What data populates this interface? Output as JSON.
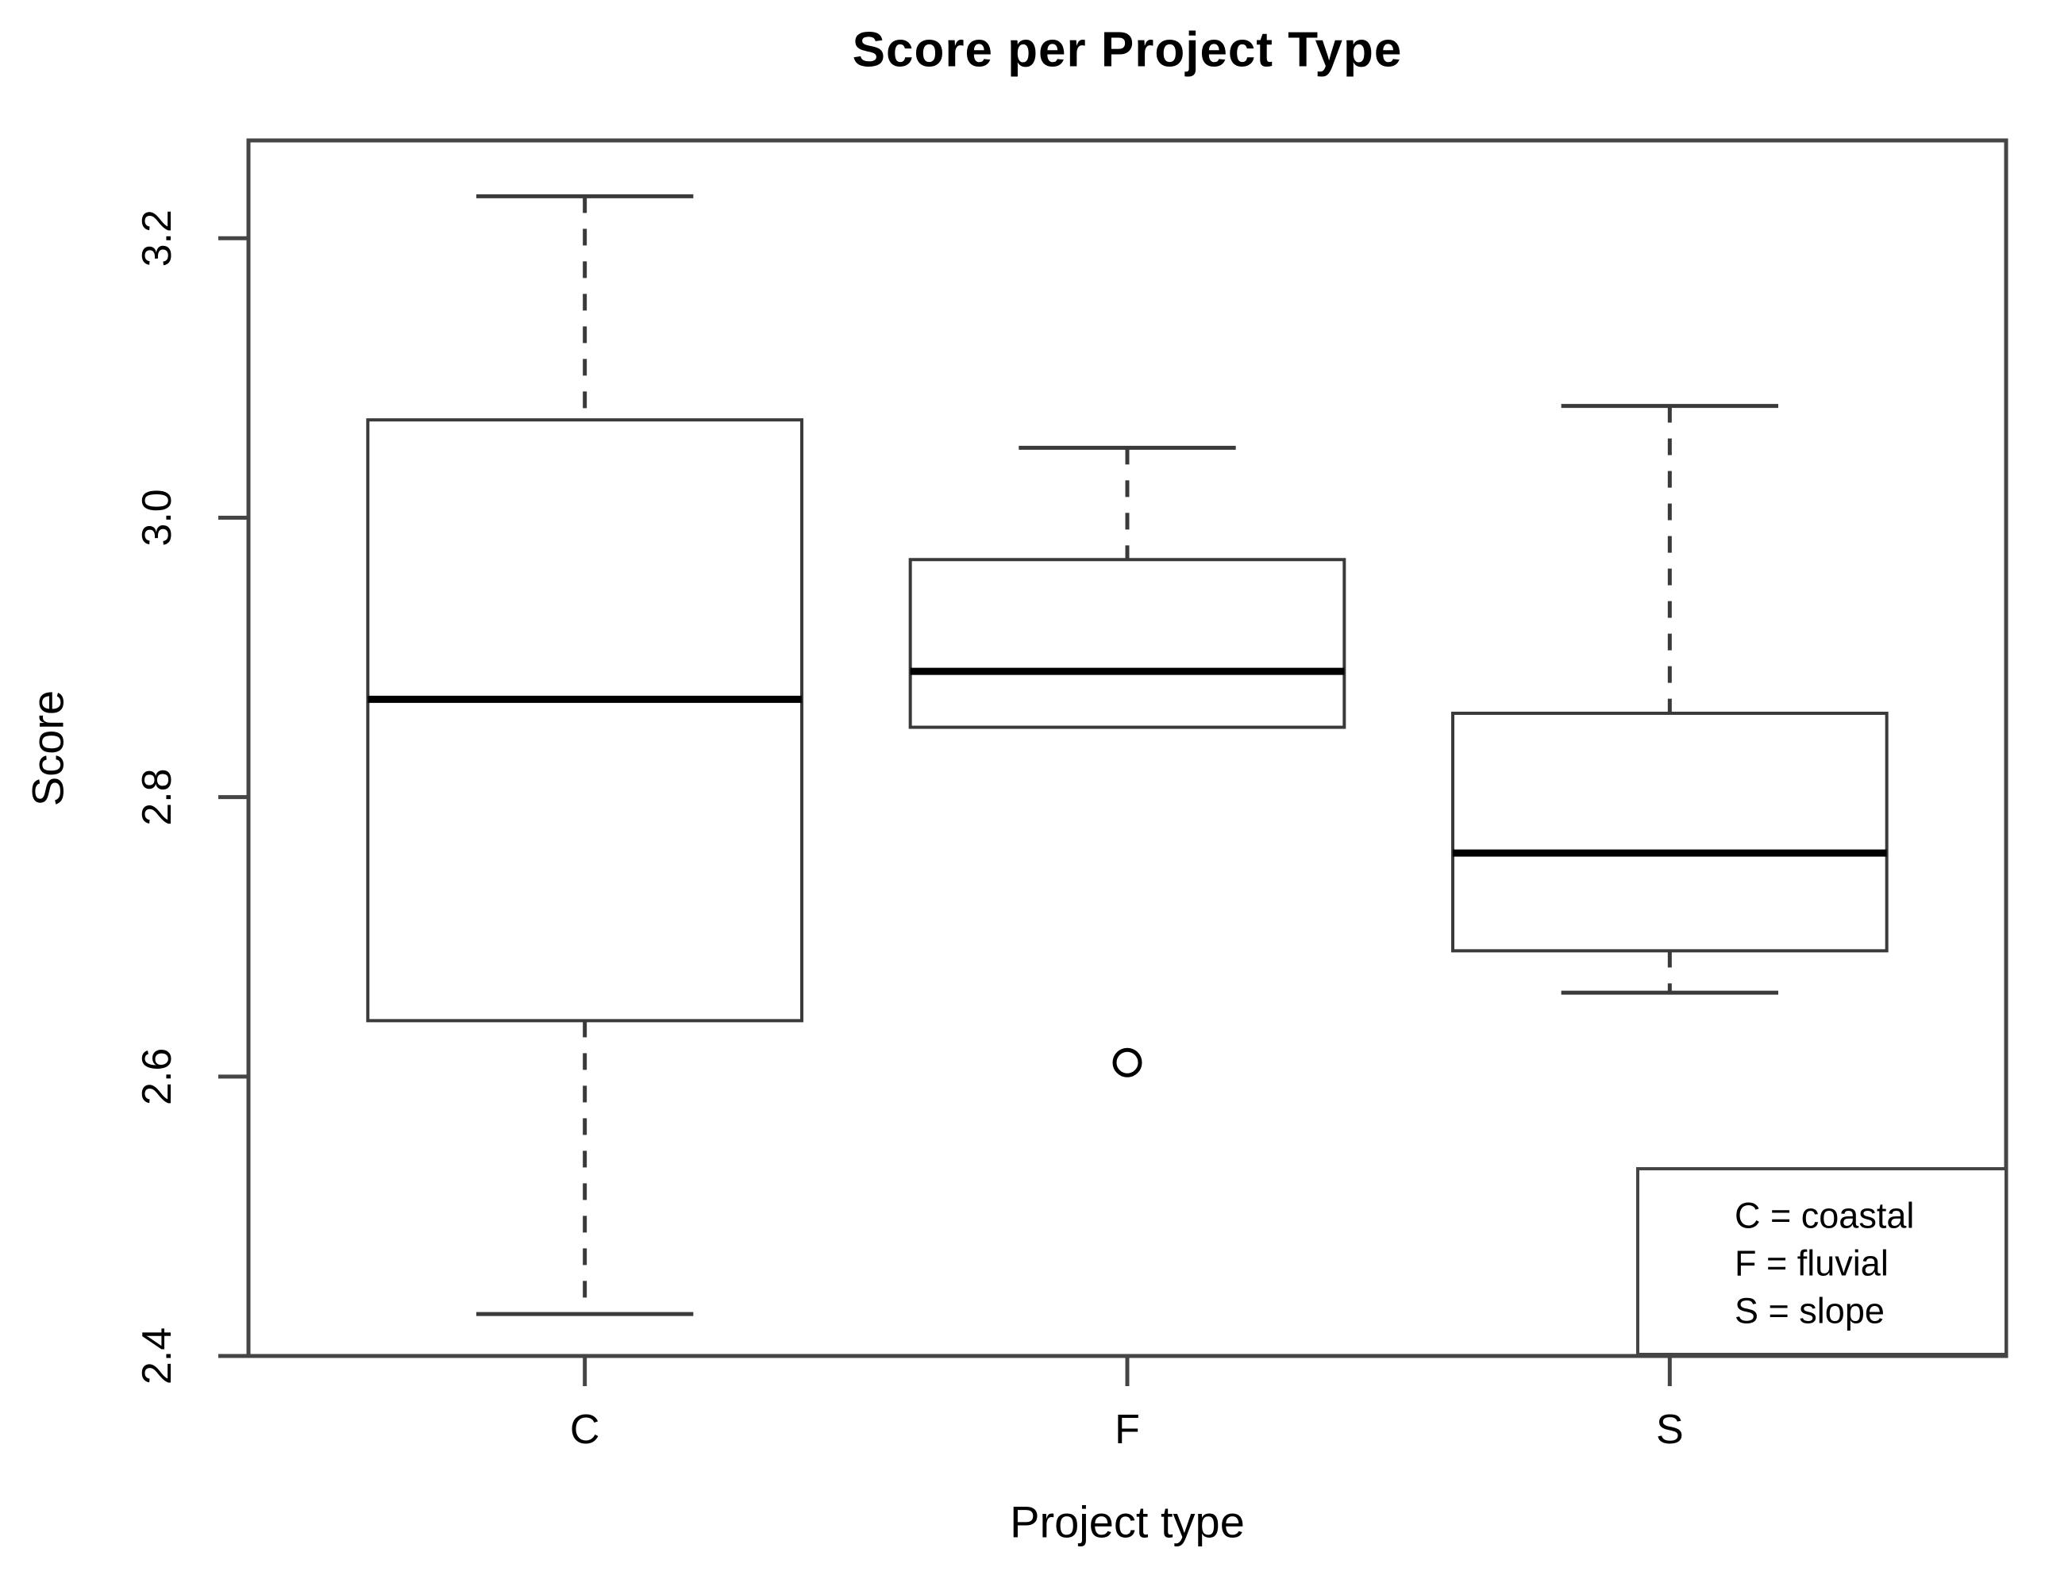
{
  "title": "Score per Project Type",
  "axes": {
    "x_label": "Project type",
    "y_label": "Score",
    "x_categories": [
      "C",
      "F",
      "S"
    ],
    "y_tick_labels": [
      "2.4",
      "2.6",
      "2.8",
      "3.0",
      "3.2"
    ]
  },
  "legend": {
    "lines": [
      "C = coastal",
      "F = fluvial",
      "S = slope"
    ],
    "position": "bottom-right"
  },
  "colors": {
    "background": "#ffffff",
    "frame_stroke": "#454545",
    "box_stroke": "#3a3a3a",
    "median_stroke": "#000000",
    "text": "#000000"
  },
  "chart_data": {
    "type": "boxplot",
    "title": "Score per Project Type",
    "xlabel": "Project type",
    "ylabel": "Score",
    "categories": [
      "C",
      "F",
      "S"
    ],
    "category_meanings": {
      "C": "coastal",
      "F": "fluvial",
      "S": "slope"
    },
    "y_ticks": [
      2.4,
      2.6,
      2.8,
      3.0,
      3.2
    ],
    "ylim": [
      2.4,
      3.27
    ],
    "grid": false,
    "legend_position": "bottom-right",
    "series": [
      {
        "category": "C",
        "whisker_low": 2.43,
        "q1": 2.64,
        "median": 2.87,
        "q3": 3.07,
        "whisker_high": 3.23,
        "outliers": []
      },
      {
        "category": "F",
        "whisker_low": 2.85,
        "q1": 2.85,
        "median": 2.89,
        "q3": 2.97,
        "whisker_high": 3.05,
        "outliers": [
          2.61
        ]
      },
      {
        "category": "S",
        "whisker_low": 2.66,
        "q1": 2.69,
        "median": 2.76,
        "q3": 2.86,
        "whisker_high": 3.08,
        "outliers": []
      }
    ]
  }
}
